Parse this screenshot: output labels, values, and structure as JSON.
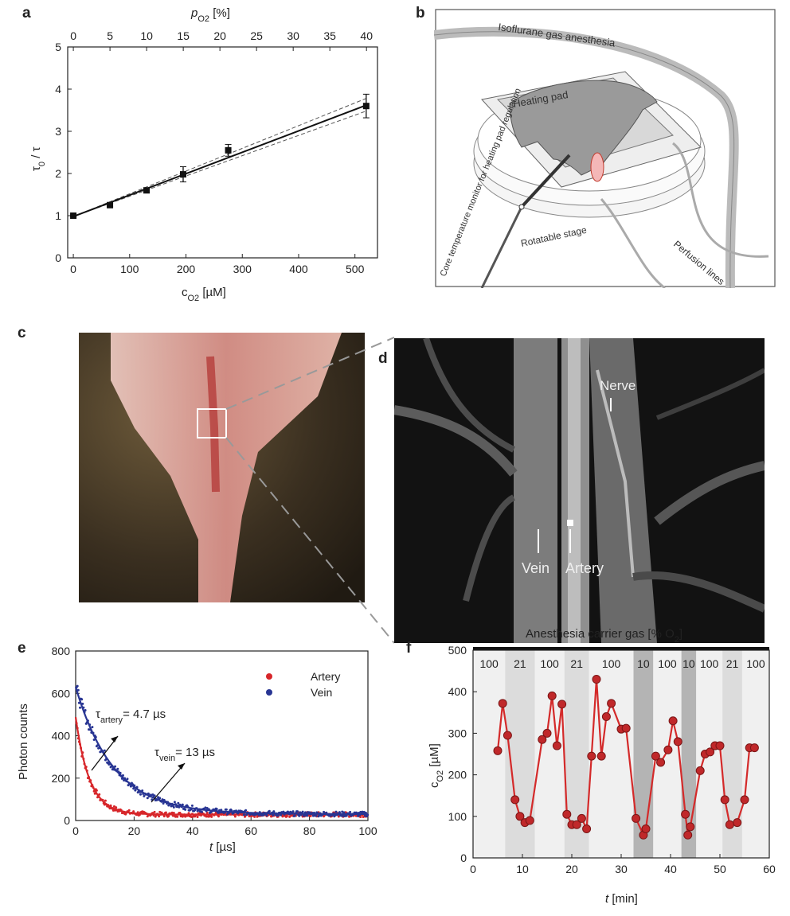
{
  "panel_labels": {
    "a": "a",
    "b": "b",
    "c": "c",
    "d": "d",
    "e": "e",
    "f": "f"
  },
  "panel_b": {
    "labels": {
      "gas": "Isoflurane gas anesthesia",
      "heating_pad": "Heating pad",
      "core_temp": "Core temperature monitor for heating pad regulation",
      "stage": "Rotatable stage",
      "perfusion": "Perfusion lines"
    }
  },
  "panel_d": {
    "labels": {
      "nerve": "Nerve",
      "vein": "Vein",
      "artery": "Artery"
    }
  },
  "chart_data": [
    {
      "id": "a",
      "type": "scatter",
      "xlabel": "c_O2 [µM]",
      "xlabel_main": "c",
      "xlabel_sub": "O2",
      "xlabel_unit": " [µM]",
      "ylabel_main": "τ",
      "ylabel_sub": "0",
      "ylabel_rest": " / τ",
      "x2label_main": "p",
      "x2label_sub": "O2",
      "x2label_unit": " [%]",
      "xlim": [
        -10,
        540
      ],
      "ylim": [
        0,
        5
      ],
      "x2lim": [
        -0.77,
        41.5
      ],
      "xticks": [
        0,
        100,
        200,
        300,
        400,
        500
      ],
      "yticks": [
        0,
        1,
        2,
        3,
        4,
        5
      ],
      "x2ticks": [
        0,
        5,
        10,
        15,
        20,
        25,
        30,
        35,
        40
      ],
      "grid": false,
      "points": [
        {
          "x": 0,
          "y": 1.0,
          "err": 0.02
        },
        {
          "x": 65,
          "y": 1.25,
          "err": 0.04
        },
        {
          "x": 130,
          "y": 1.6,
          "err": 0.06
        },
        {
          "x": 195,
          "y": 1.98,
          "err": 0.18
        },
        {
          "x": 275,
          "y": 2.55,
          "err": 0.14
        },
        {
          "x": 520,
          "y": 3.6,
          "err": 0.28
        }
      ],
      "fit": {
        "x": [
          0,
          520
        ],
        "y": [
          0.98,
          3.62
        ]
      },
      "ci_upper": {
        "x": [
          0,
          520
        ],
        "y": [
          0.98,
          3.78
        ]
      },
      "ci_lower": {
        "x": [
          0,
          520
        ],
        "y": [
          0.98,
          3.48
        ]
      }
    },
    {
      "id": "e",
      "type": "scatter",
      "xlabel_main": "t",
      "xlabel_unit": " [µs]",
      "ylabel": "Photon counts",
      "xlim": [
        0,
        100
      ],
      "ylim": [
        0,
        800
      ],
      "xticks": [
        0,
        20,
        40,
        60,
        80,
        100
      ],
      "yticks": [
        0,
        200,
        400,
        600,
        800
      ],
      "grid": false,
      "legend_position": "top-right",
      "series": [
        {
          "name": "Artery",
          "color": "#d7262a",
          "amplitude": 460,
          "tau": 4.7,
          "offset": 28
        },
        {
          "name": "Vein",
          "color": "#283593",
          "amplitude": 600,
          "tau": 13,
          "offset": 30
        }
      ],
      "annotations": [
        {
          "main": "τ",
          "sub": "artery",
          "rest": "= 4.7 µs",
          "color": "#d7262a"
        },
        {
          "main": "τ",
          "sub": "vein",
          "rest": "= 13 µs",
          "color": "#283593"
        }
      ]
    },
    {
      "id": "f",
      "type": "line",
      "title": "Anesthesia carrier gas [% O2]",
      "title_main": "Anesthesia carrier gas [% O",
      "title_sub": "2",
      "title_end": "]",
      "xlabel_main": "t",
      "xlabel_unit": " [min]",
      "ylabel_main": "c",
      "ylabel_sub": "O2",
      "ylabel_unit": " [µM]",
      "xlim": [
        0,
        60
      ],
      "ylim": [
        0,
        500
      ],
      "xticks": [
        0,
        10,
        20,
        30,
        40,
        50,
        60
      ],
      "yticks": [
        0,
        100,
        200,
        300,
        400,
        500
      ],
      "color": "#d42a2a",
      "bands": [
        {
          "from": 0,
          "to": 6.5,
          "label": "100",
          "shade": "#f0f0f0"
        },
        {
          "from": 6.5,
          "to": 12.5,
          "label": "21",
          "shade": "#dcdcdc"
        },
        {
          "from": 12.5,
          "to": 18.5,
          "label": "100",
          "shade": "#f0f0f0"
        },
        {
          "from": 18.5,
          "to": 23.5,
          "label": "21",
          "shade": "#dcdcdc"
        },
        {
          "from": 23.5,
          "to": 32.5,
          "label": "100",
          "shade": "#f0f0f0"
        },
        {
          "from": 32.5,
          "to": 36.5,
          "label": "10",
          "shade": "#b4b4b4"
        },
        {
          "from": 36.5,
          "to": 42.2,
          "label": "100",
          "shade": "#f0f0f0"
        },
        {
          "from": 42.2,
          "to": 45.2,
          "label": "10",
          "shade": "#b4b4b4"
        },
        {
          "from": 45.2,
          "to": 50.5,
          "label": "100",
          "shade": "#f0f0f0"
        },
        {
          "from": 50.5,
          "to": 54.5,
          "label": "21",
          "shade": "#dcdcdc"
        },
        {
          "from": 54.5,
          "to": 60,
          "label": "100",
          "shade": "#f0f0f0"
        }
      ],
      "x": [
        5,
        6,
        7,
        8.5,
        9.5,
        10.5,
        11.5,
        14,
        15,
        16,
        17,
        18,
        19,
        20,
        21,
        22,
        23,
        24,
        25,
        26,
        27,
        28,
        30,
        31,
        33,
        34.5,
        35,
        37,
        38,
        39.5,
        40.5,
        41.5,
        43,
        43.5,
        44,
        46,
        47,
        48,
        49,
        50,
        51,
        52,
        53.5,
        55,
        56,
        57
      ],
      "y": [
        258,
        372,
        295,
        140,
        100,
        85,
        90,
        285,
        300,
        390,
        270,
        370,
        105,
        80,
        80,
        95,
        70,
        245,
        430,
        245,
        340,
        372,
        310,
        312,
        95,
        55,
        70,
        245,
        230,
        260,
        330,
        280,
        105,
        55,
        75,
        210,
        250,
        255,
        270,
        270,
        140,
        80,
        85,
        140,
        265,
        265
      ]
    }
  ]
}
